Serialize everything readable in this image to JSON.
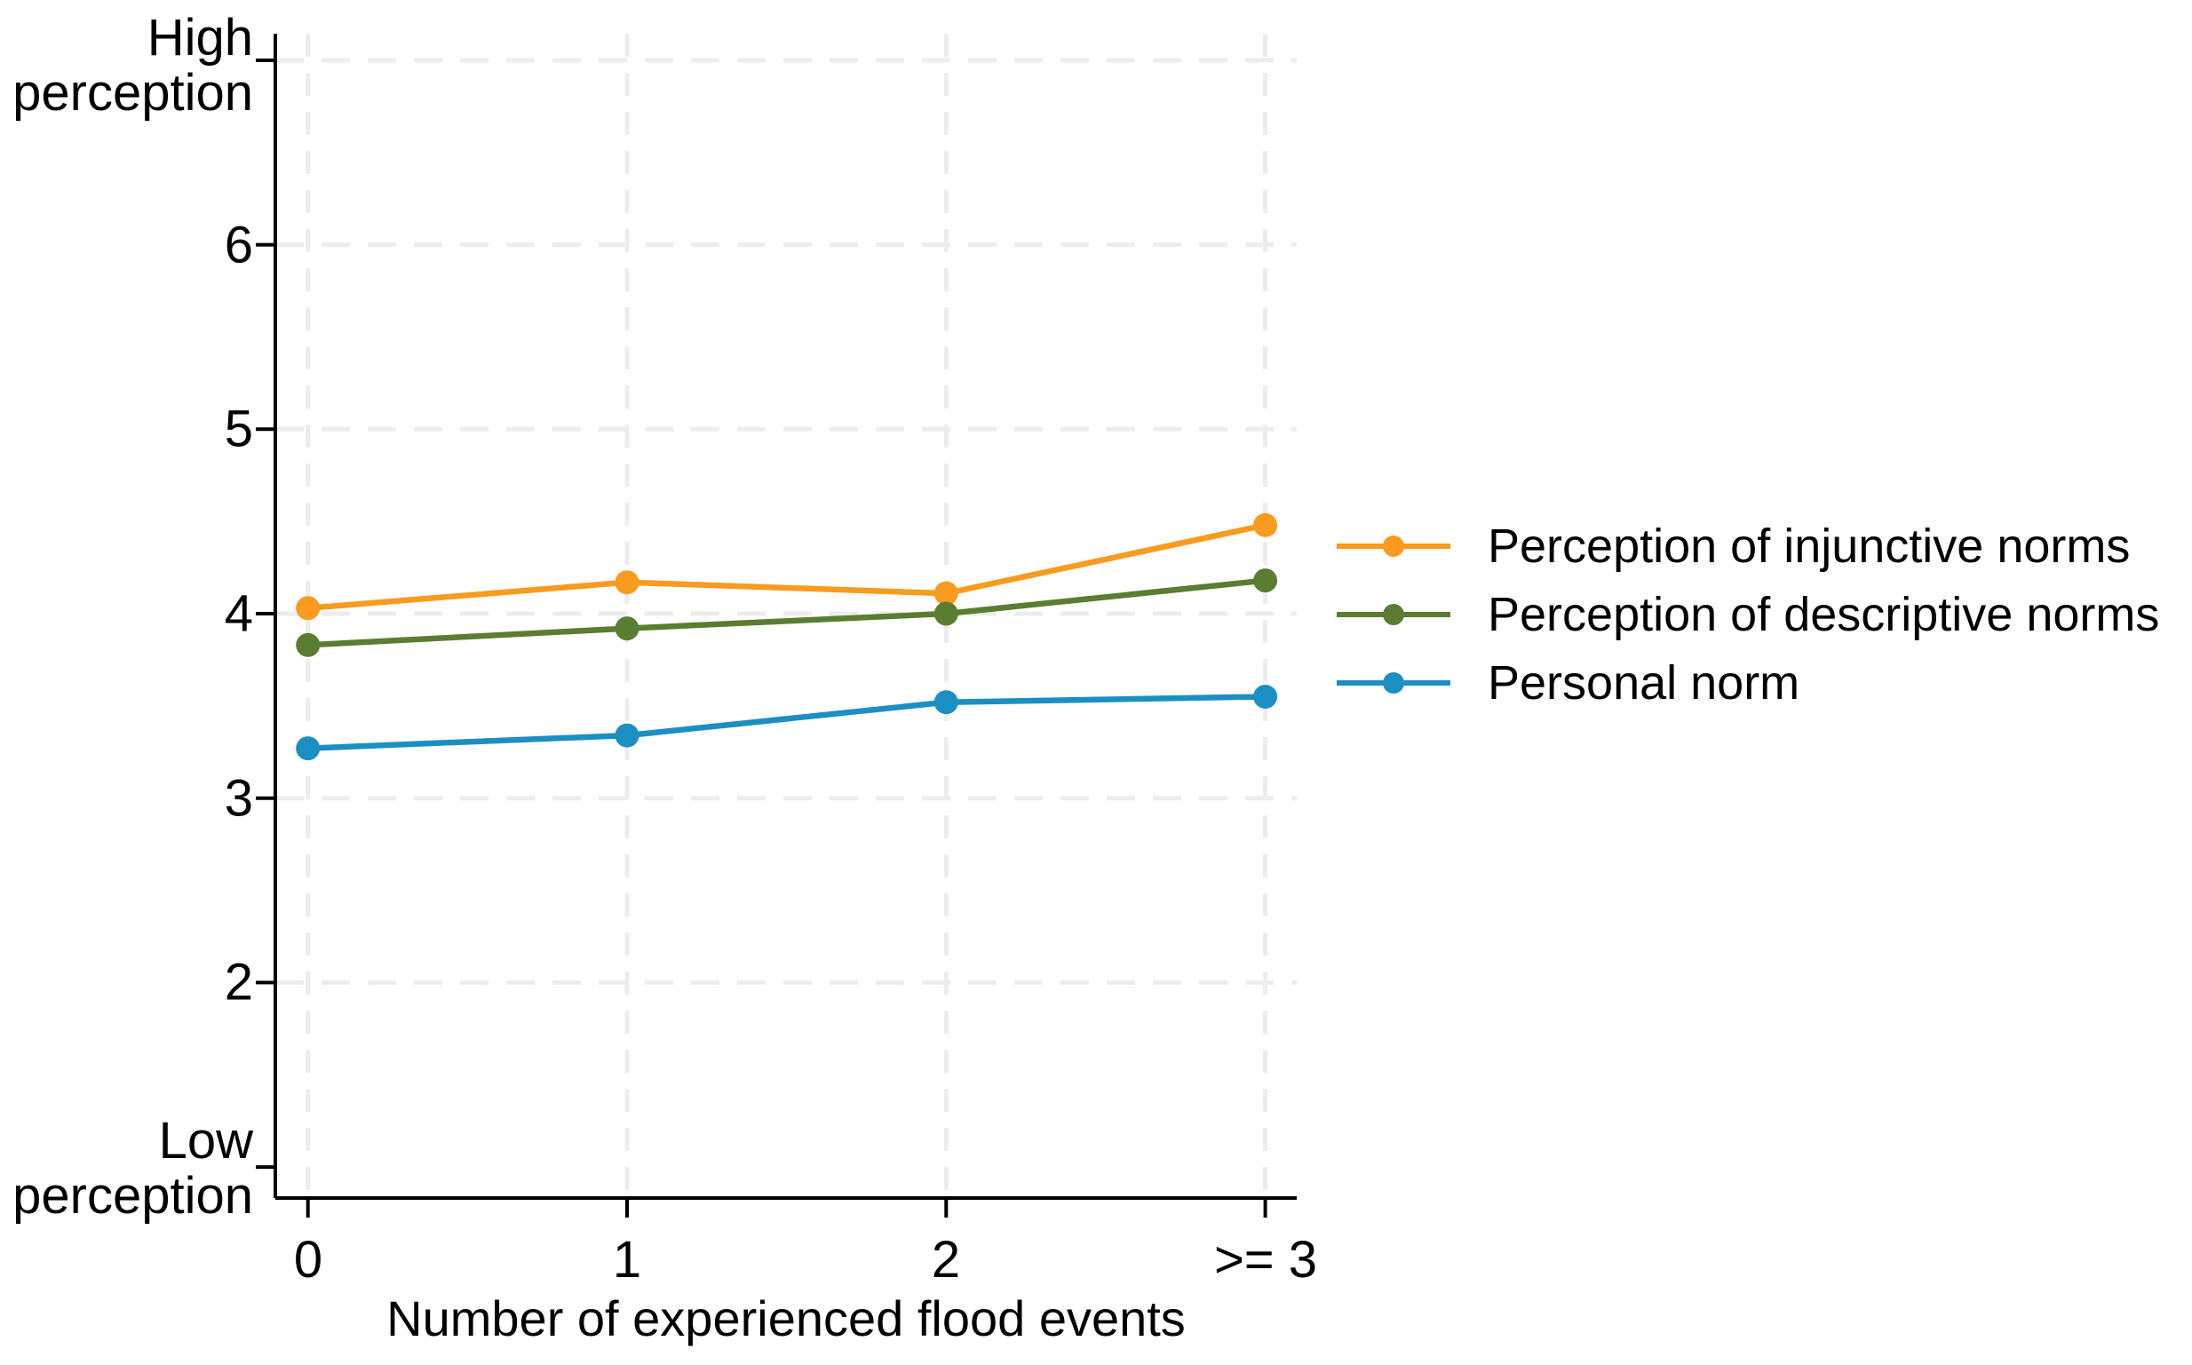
{
  "chart_data": {
    "type": "line",
    "title": "",
    "xlabel": "Number of experienced flood events",
    "categories": [
      "0",
      "1",
      "2",
      ">= 3"
    ],
    "x_values": [
      0,
      1,
      2,
      3
    ],
    "y_axis": {
      "min": 1,
      "max": 7,
      "top_label": "High perception",
      "bottom_label": "Low perception",
      "top_label_lines": [
        "High",
        "perception"
      ],
      "bottom_label_lines": [
        "Low",
        "perception"
      ],
      "numeric_ticks": [
        2,
        3,
        4,
        5,
        6
      ]
    },
    "ytick_labels": [
      "6",
      "5",
      "4",
      "3",
      "2"
    ],
    "grid": {
      "shown": true,
      "style": "dashed",
      "color": "#EDEDED",
      "horizontal_at": [
        2,
        3,
        4,
        5,
        6,
        7
      ],
      "vertical_at_every_category": true
    },
    "legend_position": "right",
    "series": [
      {
        "name": "Perception of injunctive norms",
        "color": "#F89B1E",
        "values": [
          4.03,
          4.17,
          4.11,
          4.48
        ]
      },
      {
        "name": "Perception of descriptive norms",
        "color": "#5A7D32",
        "values": [
          3.83,
          3.92,
          4.0,
          4.18
        ]
      },
      {
        "name": "Personal norm",
        "color": "#1B8FC4",
        "values": [
          3.27,
          3.34,
          3.52,
          3.55
        ]
      }
    ],
    "axis_color": "#000000",
    "background_color": "#FFFFFF"
  }
}
